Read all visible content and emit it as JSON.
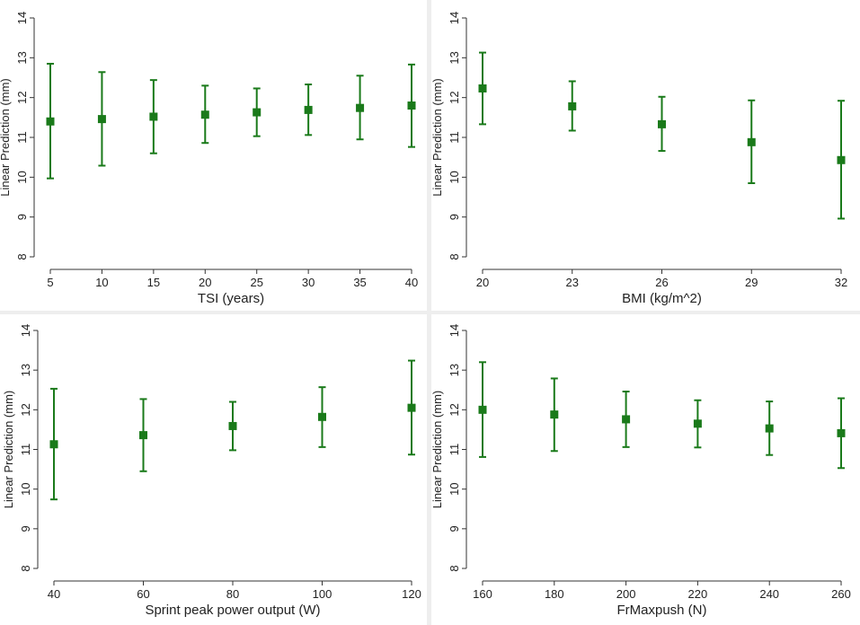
{
  "colors": {
    "series": "#1a7a1a",
    "axis": "#333333",
    "panel_bg": "#ffffff",
    "outer_bg": "#eeeeee"
  },
  "chart_data": [
    {
      "type": "scatter",
      "title": "",
      "xlabel": "TSI (years)",
      "ylabel": "Linear Prediction (mm)",
      "xlim": [
        5,
        40
      ],
      "ylim": [
        8,
        14
      ],
      "xticks": [
        5,
        10,
        15,
        20,
        25,
        30,
        35,
        40
      ],
      "yticks": [
        8,
        9,
        10,
        11,
        12,
        13,
        14
      ],
      "x": [
        5,
        10,
        15,
        20,
        25,
        30,
        35,
        40
      ],
      "y": [
        11.4,
        11.46,
        11.52,
        11.57,
        11.63,
        11.69,
        11.74,
        11.8
      ],
      "ci_low": [
        9.97,
        10.29,
        10.6,
        10.86,
        11.03,
        11.06,
        10.95,
        10.76
      ],
      "ci_high": [
        12.85,
        12.64,
        12.44,
        12.3,
        12.23,
        12.33,
        12.55,
        12.83
      ]
    },
    {
      "type": "scatter",
      "title": "",
      "xlabel": "BMI (kg/m^2)",
      "ylabel": "Linear Prediction (mm)",
      "xlim": [
        20,
        32
      ],
      "ylim": [
        8,
        14
      ],
      "xticks": [
        20,
        23,
        26,
        29,
        32
      ],
      "yticks": [
        8,
        9,
        10,
        11,
        12,
        13,
        14
      ],
      "x": [
        20,
        23,
        26,
        29,
        32
      ],
      "y": [
        12.23,
        11.78,
        11.33,
        10.88,
        10.43
      ],
      "ci_low": [
        11.33,
        11.17,
        10.66,
        9.85,
        8.96
      ],
      "ci_high": [
        13.13,
        12.41,
        12.02,
        11.93,
        11.92
      ]
    },
    {
      "type": "scatter",
      "title": "",
      "xlabel": "Sprint peak power output (W)",
      "ylabel": "Linear Prediction (mm)",
      "xlim": [
        40,
        120
      ],
      "ylim": [
        8,
        14
      ],
      "xticks": [
        40,
        60,
        80,
        100,
        120
      ],
      "yticks": [
        8,
        9,
        10,
        11,
        12,
        13,
        14
      ],
      "x": [
        40,
        60,
        80,
        100,
        120
      ],
      "y": [
        11.13,
        11.36,
        11.59,
        11.82,
        12.05
      ],
      "ci_low": [
        9.74,
        10.45,
        10.98,
        11.06,
        10.87
      ],
      "ci_high": [
        12.53,
        12.27,
        12.2,
        12.57,
        13.24
      ]
    },
    {
      "type": "scatter",
      "title": "",
      "xlabel": "FrMaxpush (N)",
      "ylabel": "Linear Prediction (mm)",
      "xlim": [
        160,
        260
      ],
      "ylim": [
        8,
        14
      ],
      "xticks": [
        160,
        180,
        200,
        220,
        240,
        260
      ],
      "yticks": [
        8,
        9,
        10,
        11,
        12,
        13,
        14
      ],
      "x": [
        160,
        180,
        200,
        220,
        240,
        260
      ],
      "y": [
        12.0,
        11.88,
        11.76,
        11.65,
        11.53,
        11.41
      ],
      "ci_low": [
        10.81,
        10.96,
        11.06,
        11.05,
        10.86,
        10.53
      ],
      "ci_high": [
        13.2,
        12.79,
        12.46,
        12.24,
        12.21,
        12.29
      ]
    }
  ]
}
